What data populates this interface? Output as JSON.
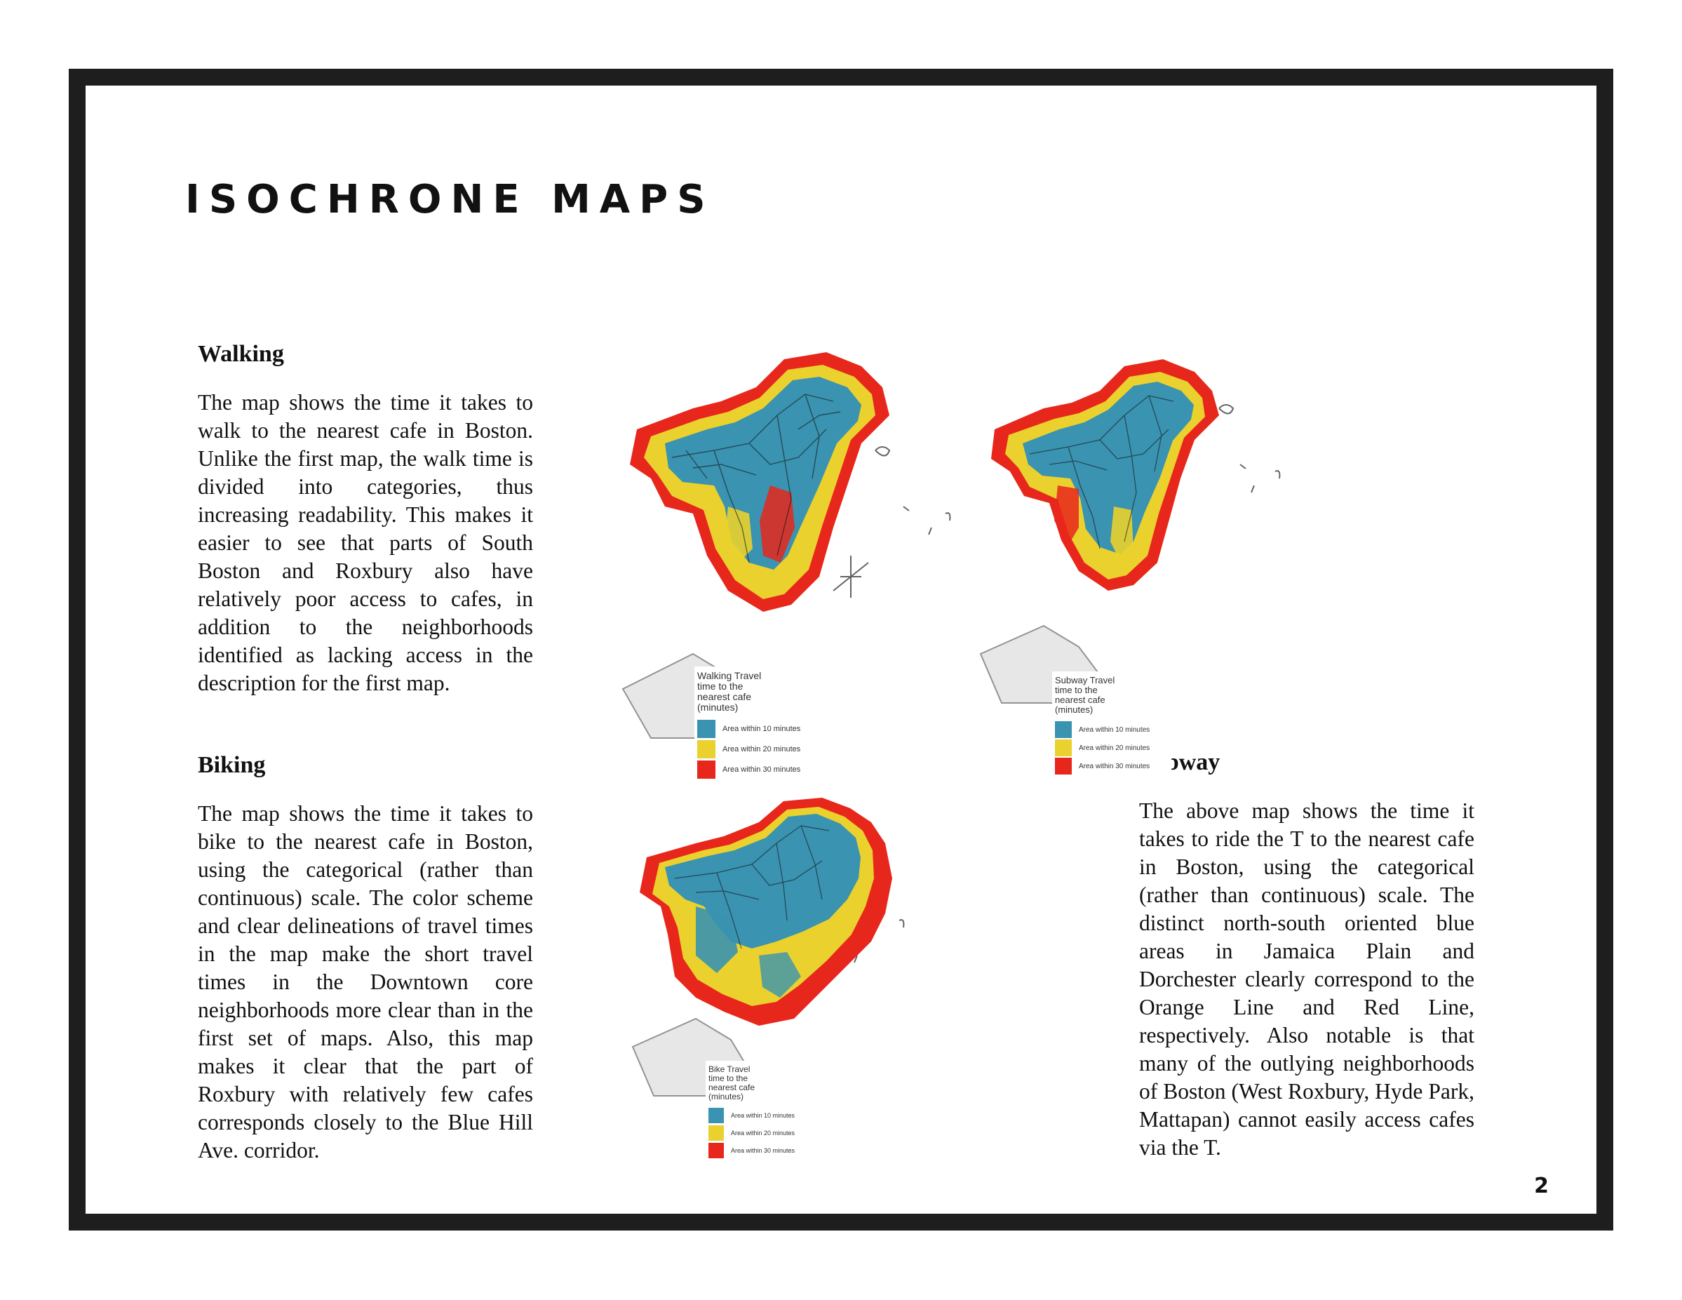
{
  "page": {
    "title": "ISOCHRONE MAPS",
    "page_number": "2"
  },
  "sections": {
    "walking": {
      "heading": "Walking",
      "body": "The map shows the time it takes to walk to the nearest cafe in Boston. Unlike the first map, the walk time is divided into categories, thus increasing readability. This makes it easier to see that parts of South Boston and Roxbury also have relatively poor access to cafes, in addition to the neighborhoods identified as lacking access in the description for the first map."
    },
    "biking": {
      "heading": "Biking",
      "body": "The map shows the time it takes to bike to the nearest cafe in Boston, using the categorical (rather than continuous) scale. The color scheme and clear delineations of travel times in the map make the short travel times in the Downtown core neighborhoods more clear than in the first set of maps. Also, this map makes it clear that the part of Roxbury with relatively few cafes corresponds closely to the Blue Hill Ave. corridor."
    },
    "subway": {
      "heading": "Subway",
      "body": "The above map shows the time it takes to ride the T to the nearest cafe in Boston, using the categorical (rather than continuous) scale. The distinct north-south oriented blue areas in Jamaica Plain and Dorchester clearly correspond to the Orange Line and Red Line, respectively. Also notable is that many of the outlying neighborhoods of Boston (West Roxbury, Hyde Park, Mattapan) cannot easily access cafes via the T."
    }
  },
  "maps": {
    "walking": {
      "legend_title": "Walking Travel time to the nearest cafe (minutes)",
      "items": [
        "Area within 10 minutes",
        "Area within 20 minutes",
        "Area within 30 minutes"
      ]
    },
    "subway": {
      "legend_title": "Subway Travel time to the nearest cafe (minutes)",
      "items": [
        "Area within 10 minutes",
        "Area within 20 minutes",
        "Area within 30 minutes"
      ]
    },
    "biking": {
      "legend_title": "Bike Travel time to the nearest cafe (minutes)",
      "items": [
        "Area within 10 minutes",
        "Area within 20 minutes",
        "Area within 30 minutes"
      ]
    }
  },
  "colors": {
    "within_10": "#3a93b0",
    "within_20": "#ead12e",
    "within_30": "#e8271c",
    "frame": "#1e1e1e"
  }
}
